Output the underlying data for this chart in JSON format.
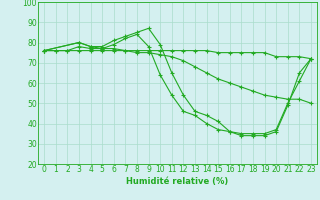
{
  "title": "",
  "xlabel": "Humidité relative (%)",
  "ylabel": "",
  "bg_color": "#d4f0f0",
  "grid_color": "#aaddcc",
  "line_color": "#22aa22",
  "xlim": [
    -0.5,
    23.5
  ],
  "ylim": [
    20,
    100
  ],
  "yticks": [
    20,
    30,
    40,
    50,
    60,
    70,
    80,
    90,
    100
  ],
  "xticks": [
    0,
    1,
    2,
    3,
    4,
    5,
    6,
    7,
    8,
    9,
    10,
    11,
    12,
    13,
    14,
    15,
    16,
    17,
    18,
    19,
    20,
    21,
    22,
    23
  ],
  "series": [
    {
      "x": [
        0,
        1,
        2,
        3,
        4,
        5,
        6,
        7,
        8,
        9,
        10,
        11,
        12,
        13,
        14,
        15,
        16,
        17,
        18,
        19,
        20,
        21,
        22,
        23
      ],
      "y": [
        76,
        76,
        76,
        76,
        76,
        76,
        76,
        76,
        76,
        76,
        76,
        76,
        76,
        76,
        76,
        75,
        75,
        75,
        75,
        75,
        73,
        73,
        73,
        72
      ]
    },
    {
      "x": [
        0,
        3,
        4,
        5,
        6,
        7,
        8,
        9,
        10,
        11,
        12,
        13,
        14,
        15,
        16,
        17,
        18,
        19,
        20,
        21,
        22,
        23
      ],
      "y": [
        76,
        80,
        78,
        78,
        81,
        83,
        85,
        87,
        79,
        65,
        54,
        46,
        44,
        41,
        36,
        35,
        35,
        35,
        37,
        50,
        61,
        72
      ]
    },
    {
      "x": [
        0,
        3,
        4,
        5,
        6,
        7,
        8,
        9,
        10,
        11,
        12,
        13,
        14,
        15,
        16,
        17,
        18,
        19,
        20,
        21,
        22,
        23
      ],
      "y": [
        76,
        80,
        78,
        77,
        79,
        82,
        84,
        78,
        64,
        54,
        46,
        44,
        40,
        37,
        36,
        34,
        34,
        34,
        36,
        49,
        65,
        72
      ]
    },
    {
      "x": [
        0,
        1,
        2,
        3,
        4,
        5,
        6,
        7,
        8,
        9,
        10,
        11,
        12,
        13,
        14,
        15,
        16,
        17,
        18,
        19,
        20,
        21,
        22,
        23
      ],
      "y": [
        76,
        76,
        76,
        78,
        77,
        77,
        77,
        76,
        75,
        75,
        74,
        73,
        71,
        68,
        65,
        62,
        60,
        58,
        56,
        54,
        53,
        52,
        52,
        50
      ]
    }
  ],
  "tick_fontsize": 5.5,
  "xlabel_fontsize": 6.0,
  "marker_size": 3,
  "linewidth": 0.8
}
